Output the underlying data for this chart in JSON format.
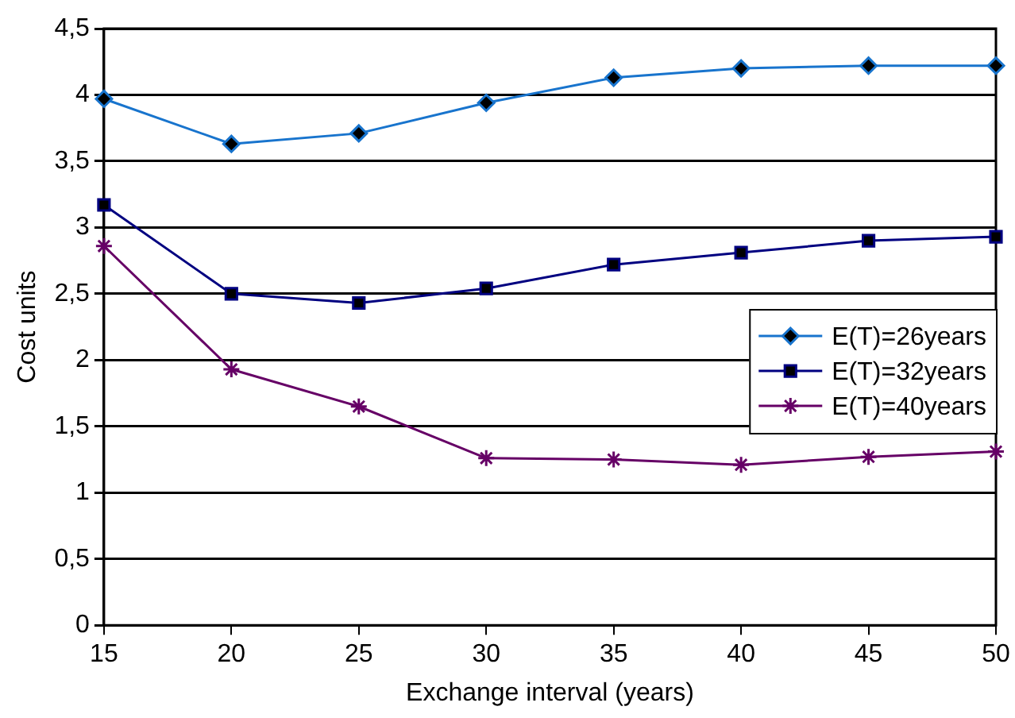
{
  "chart_data": {
    "type": "line",
    "xlabel": "Exchange interval (years)",
    "ylabel": "Cost units",
    "x": [
      15,
      20,
      25,
      30,
      35,
      40,
      45,
      50
    ],
    "series": [
      {
        "name": "E(T)=26years",
        "color": "#1874cd",
        "marker": "diamond",
        "values": [
          3.97,
          3.63,
          3.71,
          3.94,
          4.13,
          4.2,
          4.22,
          4.22
        ]
      },
      {
        "name": "E(T)=32years",
        "color": "#000080",
        "marker": "square",
        "values": [
          3.17,
          2.5,
          2.43,
          2.54,
          2.72,
          2.81,
          2.9,
          2.93
        ]
      },
      {
        "name": "E(T)=40years",
        "color": "#660066",
        "marker": "cross",
        "values": [
          2.86,
          1.93,
          1.65,
          1.26,
          1.25,
          1.21,
          1.27,
          1.31
        ]
      }
    ],
    "xlim": [
      15,
      50
    ],
    "xticks": [
      15,
      20,
      25,
      30,
      35,
      40,
      45,
      50
    ],
    "ylim": [
      0,
      4.5
    ],
    "yticks": [
      0,
      {
        "value": 0.5,
        "label": "0,5"
      },
      1,
      {
        "value": 1.5,
        "label": "1,5"
      },
      2,
      {
        "value": 2.5,
        "label": "2,5"
      },
      3,
      {
        "value": 3.5,
        "label": "3,5"
      },
      4,
      {
        "value": 4.5,
        "label": "4,5"
      }
    ],
    "grid": "y",
    "legend": "right",
    "line_style": "solid"
  }
}
